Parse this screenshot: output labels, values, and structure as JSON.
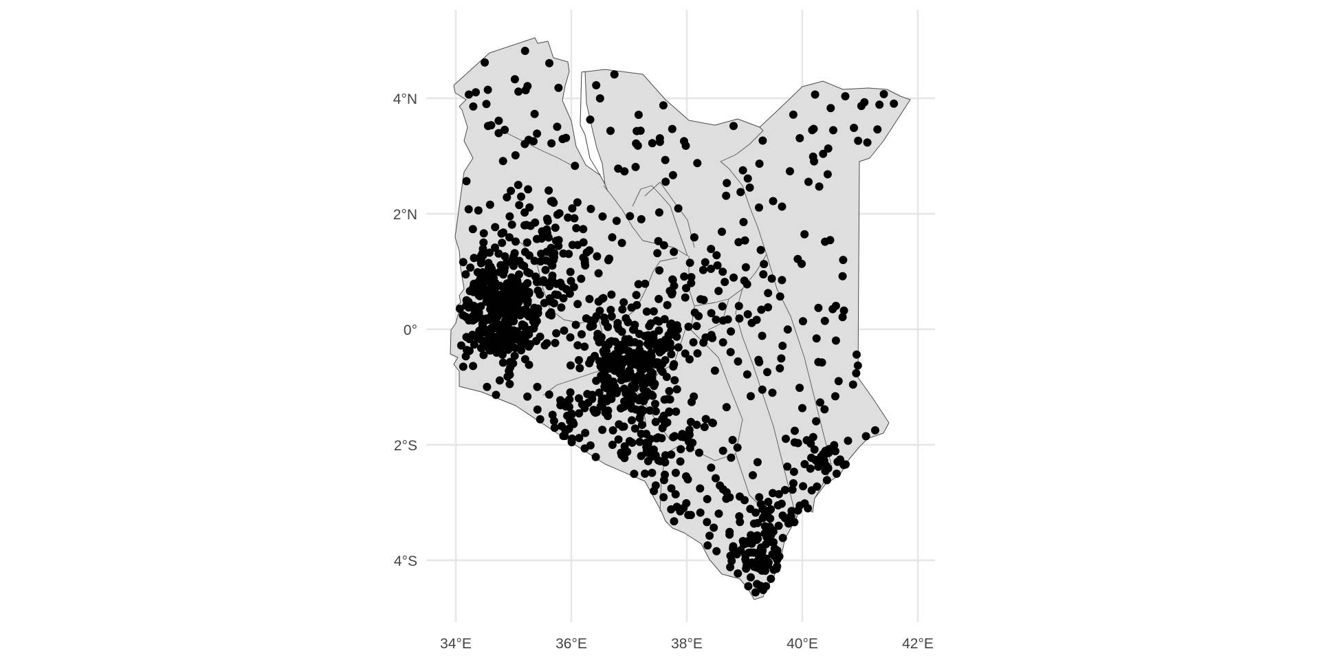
{
  "map": {
    "x_ticks": [
      {
        "value": 34,
        "label": "34°E"
      },
      {
        "value": 36,
        "label": "36°E"
      },
      {
        "value": 38,
        "label": "38°E"
      },
      {
        "value": 40,
        "label": "40°E"
      },
      {
        "value": 42,
        "label": "42°E"
      }
    ],
    "y_ticks": [
      {
        "value": 4,
        "label": "4°N"
      },
      {
        "value": 2,
        "label": "2°N"
      },
      {
        "value": 0,
        "label": "0°"
      },
      {
        "value": -2,
        "label": "2°S"
      },
      {
        "value": -4,
        "label": "4°S"
      }
    ],
    "xlim": [
      33.9,
      42.3
    ],
    "ylim": [
      -5.2,
      5.3
    ],
    "region_fill": "#dedede",
    "border_color": "#4a4a4a",
    "point_color": "#000000",
    "grid": true,
    "legend": "none",
    "seed": 20240607,
    "point_clusters": [
      {
        "lon": 34.75,
        "lat": 0.35,
        "slon": 0.42,
        "slat": 0.5,
        "n": 360
      },
      {
        "lon": 37.0,
        "lat": -0.6,
        "slon": 0.45,
        "slat": 0.5,
        "n": 260
      },
      {
        "lon": 37.6,
        "lat": -2.3,
        "slon": 0.6,
        "slat": 0.8,
        "n": 80
      },
      {
        "lon": 39.3,
        "lat": -3.8,
        "slon": 0.35,
        "slat": 0.5,
        "n": 110
      },
      {
        "lon": 40.4,
        "lat": -2.2,
        "slon": 0.4,
        "slat": 0.3,
        "n": 40
      },
      {
        "lon": 35.6,
        "lat": 1.6,
        "slon": 0.5,
        "slat": 0.6,
        "n": 70
      },
      {
        "lon": 36.2,
        "lat": -1.6,
        "slon": 0.5,
        "slat": 0.4,
        "n": 40
      },
      {
        "lon": 38.3,
        "lat": 0.3,
        "slon": 0.6,
        "slat": 0.5,
        "n": 50
      }
    ],
    "scatter_points": 300
  }
}
